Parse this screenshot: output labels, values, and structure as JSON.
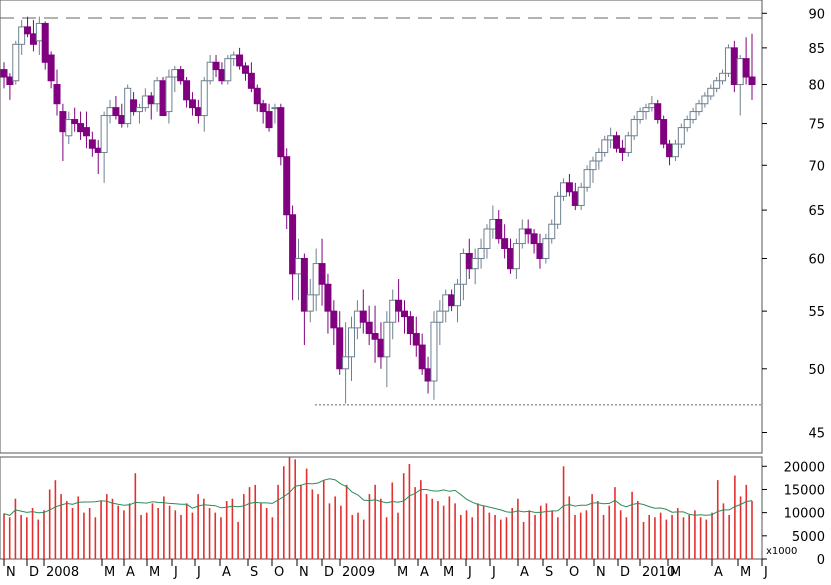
{
  "chart_data": [
    {
      "type": "candlestick",
      "title": "",
      "price_scale": "log",
      "ylim": [
        43.5,
        92
      ],
      "y_ticks": [
        "90",
        "85",
        "80",
        "75",
        "70",
        "65",
        "60",
        "55",
        "50",
        "45"
      ],
      "x_ticks": [
        "N",
        "D",
        "2008",
        "M",
        "A",
        "M",
        "J",
        "J",
        "A",
        "S",
        "O",
        "N",
        "D",
        "2009",
        "M",
        "A",
        "M",
        "J",
        "J",
        "A",
        "S",
        "O",
        "N",
        "D",
        "2010",
        "M",
        "A",
        "M",
        "J"
      ],
      "reference_lines": [
        {
          "style": "dashed",
          "value": 89.3
        },
        {
          "style": "dotted",
          "value": 47.1
        }
      ],
      "colors": {
        "up": "#ffffff",
        "up_outline": "#6e8090",
        "down": "#800080",
        "down_outline": "#800080",
        "wick": "#6e8090"
      },
      "series_ohlc": [
        [
          82,
          83,
          79.5,
          81
        ],
        [
          81,
          81.5,
          78,
          80
        ],
        [
          80.5,
          86,
          80,
          85.5
        ],
        [
          85.5,
          89,
          84,
          88
        ],
        [
          88,
          89.5,
          86.5,
          87
        ],
        [
          87,
          89,
          84.5,
          85.5
        ],
        [
          86,
          89.5,
          84,
          88.5
        ],
        [
          88.5,
          88.8,
          82,
          83
        ],
        [
          84,
          84.5,
          79.5,
          80.5
        ],
        [
          80,
          82,
          76,
          77.5
        ],
        [
          76.5,
          77.5,
          70.5,
          74
        ],
        [
          73.5,
          76.5,
          72.5,
          75.5
        ],
        [
          75.5,
          77,
          74,
          75
        ],
        [
          75,
          76.5,
          73,
          74
        ],
        [
          74.5,
          76.5,
          72,
          73.5
        ],
        [
          73,
          74,
          71,
          72
        ],
        [
          72,
          73,
          69,
          71.5
        ],
        [
          71.5,
          76.5,
          68,
          76
        ],
        [
          76,
          78,
          75,
          77
        ],
        [
          77,
          78.5,
          75.5,
          76
        ],
        [
          76,
          77.5,
          74.5,
          75
        ],
        [
          75,
          80,
          74.5,
          79.5
        ],
        [
          78,
          79,
          76,
          76.5
        ],
        [
          76.5,
          77.5,
          75,
          77
        ],
        [
          77,
          79.5,
          76.5,
          78.5
        ],
        [
          78.5,
          79,
          75.5,
          77.5
        ],
        [
          77.5,
          81,
          76.5,
          80.5
        ],
        [
          80.5,
          81,
          77,
          76
        ],
        [
          76.5,
          82,
          75,
          81
        ],
        [
          81,
          82.5,
          79,
          82
        ],
        [
          82,
          82.5,
          80,
          80.5
        ],
        [
          80.5,
          81,
          77,
          78
        ],
        [
          78,
          79,
          76,
          77
        ],
        [
          77,
          78,
          75,
          76
        ],
        [
          76,
          81,
          74,
          80.5
        ],
        [
          80.5,
          84,
          80,
          83
        ],
        [
          83,
          84,
          81,
          82
        ],
        [
          82,
          83,
          80,
          80.5
        ],
        [
          80.5,
          84,
          80,
          83.5
        ],
        [
          83.5,
          84.5,
          82.5,
          84
        ],
        [
          84,
          85,
          82,
          82.5
        ],
        [
          82.5,
          83,
          80.5,
          81.5
        ],
        [
          81.5,
          83,
          79,
          79.5
        ],
        [
          79.5,
          80,
          76.5,
          77.5
        ],
        [
          77.5,
          78,
          75,
          76.5
        ],
        [
          76.5,
          77.5,
          74,
          74.5
        ],
        [
          77,
          77.5,
          75,
          77
        ],
        [
          77,
          77.5,
          70,
          71
        ],
        [
          71,
          72,
          63,
          64.5
        ],
        [
          64.5,
          65.5,
          56,
          58.5
        ],
        [
          58.5,
          62,
          56,
          60
        ],
        [
          60,
          60.5,
          52,
          55
        ],
        [
          55,
          58,
          54,
          56.5
        ],
        [
          56.5,
          61,
          55,
          59.5
        ],
        [
          59.5,
          62,
          55.5,
          57.5
        ],
        [
          57.5,
          58.5,
          53,
          55
        ],
        [
          55,
          56,
          52,
          53.5
        ],
        [
          53.5,
          55,
          49.5,
          50
        ],
        [
          50,
          54,
          47.2,
          51
        ],
        [
          51,
          54.5,
          49,
          53.5
        ],
        [
          53.5,
          56,
          52.5,
          55
        ],
        [
          55,
          57,
          53,
          54
        ],
        [
          54,
          55.5,
          52,
          53
        ],
        [
          53,
          55.5,
          50.5,
          52.5
        ],
        [
          52.5,
          54,
          50,
          51
        ],
        [
          51,
          55,
          48.5,
          54
        ],
        [
          54,
          57,
          52.5,
          56
        ],
        [
          56,
          58,
          54,
          55
        ],
        [
          55,
          56,
          53,
          54.5
        ],
        [
          54.5,
          55,
          52,
          53
        ],
        [
          53,
          54.5,
          51,
          52
        ],
        [
          52,
          53,
          49.5,
          50
        ],
        [
          50,
          51,
          48,
          49
        ],
        [
          49,
          55,
          47.5,
          54
        ],
        [
          54,
          56,
          52,
          55
        ],
        [
          55,
          57,
          54,
          56.5
        ],
        [
          56.5,
          57,
          55,
          55.5
        ],
        [
          55.5,
          58,
          54,
          57.5
        ],
        [
          57.5,
          61,
          56,
          60.5
        ],
        [
          60.5,
          62,
          58,
          59
        ],
        [
          59,
          61,
          57.5,
          60
        ],
        [
          60,
          62,
          59,
          61
        ],
        [
          61,
          63.5,
          60,
          63
        ],
        [
          63,
          65.5,
          62,
          64
        ],
        [
          64,
          65,
          61.5,
          62
        ],
        [
          62,
          63.5,
          60,
          61
        ],
        [
          61,
          62,
          58.5,
          59
        ],
        [
          59,
          62,
          58,
          61.5
        ],
        [
          61.5,
          64,
          61,
          63
        ],
        [
          63,
          64,
          61.5,
          62.5
        ],
        [
          62.5,
          63,
          60.5,
          61.5
        ],
        [
          61.5,
          62.5,
          59,
          60
        ],
        [
          60,
          62.5,
          59.5,
          62
        ],
        [
          62,
          64,
          61.5,
          63.5
        ],
        [
          63.5,
          67,
          63,
          66.5
        ],
        [
          66.5,
          68.5,
          66,
          68
        ],
        [
          68,
          69,
          66.5,
          67
        ],
        [
          67,
          68,
          65,
          65.5
        ],
        [
          65.5,
          68,
          65,
          67.5
        ],
        [
          67.5,
          70,
          67,
          69.5
        ],
        [
          69.5,
          71,
          68,
          70.5
        ],
        [
          70.5,
          72,
          69.5,
          71.5
        ],
        [
          71.5,
          73.5,
          71,
          73
        ],
        [
          73,
          74.5,
          72,
          73.5
        ],
        [
          73.5,
          74,
          71.5,
          72
        ],
        [
          72,
          73,
          70.5,
          71.5
        ],
        [
          71.5,
          74,
          71,
          73.5
        ],
        [
          73.5,
          76,
          73,
          75.5
        ],
        [
          75.5,
          77,
          75,
          76.5
        ],
        [
          76.5,
          77.5,
          75.5,
          77
        ],
        [
          77,
          78.5,
          76.5,
          77.5
        ],
        [
          77.5,
          78,
          75,
          75.5
        ],
        [
          75.5,
          76,
          72,
          72.5
        ],
        [
          72.5,
          73,
          70,
          71
        ],
        [
          71,
          73,
          70.5,
          72.5
        ],
        [
          72.5,
          75,
          72,
          74.5
        ],
        [
          74.5,
          76,
          74,
          75.5
        ],
        [
          75.5,
          77,
          75,
          76.5
        ],
        [
          76.5,
          78,
          76,
          77.5
        ],
        [
          77.5,
          79,
          77,
          78.5
        ],
        [
          78.5,
          80,
          78,
          79.5
        ],
        [
          79.5,
          81,
          79,
          80.5
        ],
        [
          80.5,
          82,
          80,
          81.5
        ],
        [
          81.5,
          85.5,
          81,
          85
        ],
        [
          85,
          86,
          79,
          80
        ],
        [
          80,
          84,
          76,
          83.5
        ],
        [
          83.5,
          86.5,
          80,
          81
        ],
        [
          81,
          87,
          78,
          80
        ]
      ],
      "volume": {
        "unit_label": "x1000",
        "y_ticks": [
          "20000",
          "15000",
          "10000",
          "5000",
          "0"
        ],
        "ylim": [
          0,
          22000
        ],
        "ma_color": "#2e8b57",
        "bar_color": "#e03030",
        "values": [
          9800,
          9000,
          13000,
          9500,
          9000,
          11000,
          8500,
          10500,
          15000,
          17000,
          14000,
          12500,
          11000,
          13500,
          10000,
          11000,
          9000,
          12500,
          14000,
          13000,
          11500,
          10500,
          12000,
          18500,
          9500,
          10000,
          12000,
          11000,
          13500,
          11500,
          10500,
          9500,
          12000,
          10000,
          14000,
          13000,
          11000,
          10000,
          9000,
          12500,
          13000,
          8000,
          14000,
          15500,
          16000,
          12000,
          11000,
          9000,
          16000,
          20000,
          22000,
          21500,
          16000,
          19500,
          15000,
          14000,
          17000,
          12000,
          13500,
          11500,
          16000,
          9500,
          10000,
          8500,
          14000,
          16000,
          13000,
          9000,
          16500,
          10000,
          18500,
          20500,
          15500,
          17000,
          14000,
          13000,
          12500,
          11500,
          13500,
          12000,
          9500,
          10500,
          9000,
          12000,
          11500,
          10000,
          9500,
          8500,
          9000,
          11000,
          13000,
          8000,
          10500,
          9500,
          11500,
          12000,
          10500,
          9000,
          20000,
          13500,
          9500,
          10000,
          10500,
          14000,
          12500,
          9500,
          11500,
          15500,
          10500,
          9000,
          14500,
          12500,
          8000,
          9500,
          9000,
          10000,
          8500,
          9500,
          11000,
          9000,
          9500,
          10500,
          9000,
          8500,
          10000,
          17000,
          12000,
          9500,
          18000,
          13500,
          16000,
          12500
        ]
      }
    }
  ]
}
